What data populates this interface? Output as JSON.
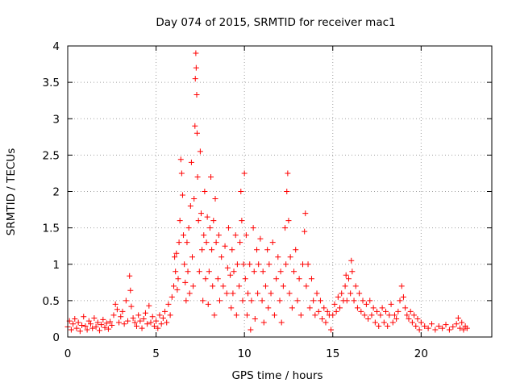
{
  "chart_data": {
    "type": "scatter",
    "title": "Day 074 of 2015, SRMTID for receiver mac1",
    "xlabel": "GPS time / hours",
    "ylabel": "SRMTID / TECUs",
    "xlim": [
      0,
      24
    ],
    "ylim": [
      0,
      4
    ],
    "xticks": [
      0,
      5,
      10,
      15,
      20
    ],
    "xtick_labels": [
      "0",
      "5",
      "10",
      "15",
      "20"
    ],
    "yticks": [
      0,
      0.5,
      1,
      1.5,
      2,
      2.5,
      3,
      3.5,
      4
    ],
    "ytick_labels": [
      "0",
      "0.5",
      "1",
      "1.5",
      "2",
      "2.5",
      "3",
      "3.5",
      "4"
    ],
    "grid": true,
    "marker": "+",
    "color": "#ff0000",
    "series": [
      {
        "name": "mac1",
        "points": [
          [
            0.0,
            0.14
          ],
          [
            0.1,
            0.22
          ],
          [
            0.2,
            0.1
          ],
          [
            0.3,
            0.18
          ],
          [
            0.4,
            0.25
          ],
          [
            0.5,
            0.12
          ],
          [
            0.6,
            0.2
          ],
          [
            0.7,
            0.08
          ],
          [
            0.8,
            0.16
          ],
          [
            0.9,
            0.28
          ],
          [
            1.0,
            0.15
          ],
          [
            1.1,
            0.1
          ],
          [
            1.2,
            0.22
          ],
          [
            1.3,
            0.18
          ],
          [
            1.4,
            0.12
          ],
          [
            1.5,
            0.26
          ],
          [
            1.6,
            0.14
          ],
          [
            1.7,
            0.2
          ],
          [
            1.8,
            0.09
          ],
          [
            1.9,
            0.17
          ],
          [
            2.0,
            0.24
          ],
          [
            2.1,
            0.13
          ],
          [
            2.2,
            0.19
          ],
          [
            2.3,
            0.11
          ],
          [
            2.4,
            0.21
          ],
          [
            2.5,
            0.16
          ],
          [
            2.6,
            0.3
          ],
          [
            2.7,
            0.45
          ],
          [
            2.8,
            0.38
          ],
          [
            2.9,
            0.2
          ],
          [
            3.0,
            0.28
          ],
          [
            3.1,
            0.35
          ],
          [
            3.2,
            0.18
          ],
          [
            3.3,
            0.5
          ],
          [
            3.4,
            0.22
          ],
          [
            3.5,
            0.84
          ],
          [
            3.55,
            0.64
          ],
          [
            3.6,
            0.42
          ],
          [
            3.7,
            0.26
          ],
          [
            3.8,
            0.2
          ],
          [
            3.9,
            0.15
          ],
          [
            4.0,
            0.3
          ],
          [
            4.1,
            0.22
          ],
          [
            4.2,
            0.12
          ],
          [
            4.3,
            0.25
          ],
          [
            4.4,
            0.33
          ],
          [
            4.5,
            0.18
          ],
          [
            4.6,
            0.43
          ],
          [
            4.7,
            0.2
          ],
          [
            4.8,
            0.28
          ],
          [
            4.9,
            0.15
          ],
          [
            5.0,
            0.22
          ],
          [
            5.1,
            0.12
          ],
          [
            5.2,
            0.3
          ],
          [
            5.3,
            0.18
          ],
          [
            5.4,
            0.26
          ],
          [
            5.5,
            0.35
          ],
          [
            5.6,
            0.2
          ],
          [
            5.7,
            0.45
          ],
          [
            5.8,
            0.3
          ],
          [
            5.9,
            0.55
          ],
          [
            6.0,
            0.7
          ],
          [
            6.05,
            1.1
          ],
          [
            6.1,
            0.9
          ],
          [
            6.15,
            1.15
          ],
          [
            6.2,
            0.65
          ],
          [
            6.25,
            0.8
          ],
          [
            6.3,
            1.3
          ],
          [
            6.35,
            1.6
          ],
          [
            6.4,
            2.44
          ],
          [
            6.45,
            2.25
          ],
          [
            6.5,
            1.95
          ],
          [
            6.55,
            1.4
          ],
          [
            6.6,
            1.0
          ],
          [
            6.65,
            0.75
          ],
          [
            6.7,
            0.5
          ],
          [
            6.75,
            1.3
          ],
          [
            6.8,
            0.9
          ],
          [
            6.85,
            1.5
          ],
          [
            6.9,
            0.6
          ],
          [
            6.95,
            1.8
          ],
          [
            7.0,
            2.4
          ],
          [
            7.05,
            1.1
          ],
          [
            7.1,
            0.7
          ],
          [
            7.15,
            1.9
          ],
          [
            7.2,
            2.9
          ],
          [
            7.22,
            3.55
          ],
          [
            7.25,
            3.9
          ],
          [
            7.27,
            3.7
          ],
          [
            7.3,
            3.33
          ],
          [
            7.32,
            2.8
          ],
          [
            7.35,
            2.2
          ],
          [
            7.4,
            1.6
          ],
          [
            7.45,
            0.9
          ],
          [
            7.5,
            2.55
          ],
          [
            7.55,
            1.7
          ],
          [
            7.6,
            1.2
          ],
          [
            7.65,
            0.5
          ],
          [
            7.7,
            1.4
          ],
          [
            7.75,
            2.0
          ],
          [
            7.8,
            0.8
          ],
          [
            7.85,
            1.3
          ],
          [
            7.9,
            1.65
          ],
          [
            7.95,
            0.45
          ],
          [
            8.0,
            0.9
          ],
          [
            8.05,
            1.5
          ],
          [
            8.1,
            2.2
          ],
          [
            8.15,
            1.2
          ],
          [
            8.2,
            0.7
          ],
          [
            8.25,
            1.6
          ],
          [
            8.3,
            0.3
          ],
          [
            8.35,
            1.9
          ],
          [
            8.4,
            1.3
          ],
          [
            8.5,
            0.8
          ],
          [
            8.55,
            1.4
          ],
          [
            8.6,
            0.5
          ],
          [
            8.7,
            1.1
          ],
          [
            8.8,
            0.7
          ],
          [
            8.9,
            1.25
          ],
          [
            9.0,
            0.6
          ],
          [
            9.05,
            0.95
          ],
          [
            9.1,
            1.5
          ],
          [
            9.2,
            0.85
          ],
          [
            9.25,
            0.4
          ],
          [
            9.3,
            1.2
          ],
          [
            9.35,
            0.6
          ],
          [
            9.4,
            0.9
          ],
          [
            9.5,
            1.4
          ],
          [
            9.55,
            0.3
          ],
          [
            9.6,
            1.0
          ],
          [
            9.7,
            0.7
          ],
          [
            9.75,
            1.3
          ],
          [
            9.8,
            2.0
          ],
          [
            9.85,
            1.6
          ],
          [
            9.9,
            0.5
          ],
          [
            9.95,
            1.0
          ],
          [
            10.0,
            2.25
          ],
          [
            10.05,
            0.8
          ],
          [
            10.1,
            1.4
          ],
          [
            10.15,
            0.3
          ],
          [
            10.2,
            0.6
          ],
          [
            10.3,
            1.0
          ],
          [
            10.35,
            0.1
          ],
          [
            10.4,
            0.5
          ],
          [
            10.5,
            1.5
          ],
          [
            10.55,
            0.9
          ],
          [
            10.6,
            0.25
          ],
          [
            10.7,
            1.2
          ],
          [
            10.75,
            0.6
          ],
          [
            10.8,
            1.0
          ],
          [
            10.9,
            1.35
          ],
          [
            11.0,
            0.5
          ],
          [
            11.05,
            0.9
          ],
          [
            11.1,
            0.2
          ],
          [
            11.2,
            0.7
          ],
          [
            11.3,
            1.2
          ],
          [
            11.35,
            0.4
          ],
          [
            11.4,
            1.0
          ],
          [
            11.5,
            0.6
          ],
          [
            11.6,
            1.3
          ],
          [
            11.7,
            0.3
          ],
          [
            11.8,
            0.8
          ],
          [
            11.9,
            1.1
          ],
          [
            12.0,
            0.5
          ],
          [
            12.05,
            0.9
          ],
          [
            12.1,
            0.2
          ],
          [
            12.2,
            0.7
          ],
          [
            12.3,
            1.5
          ],
          [
            12.35,
            1.0
          ],
          [
            12.4,
            2.0
          ],
          [
            12.45,
            2.25
          ],
          [
            12.5,
            1.6
          ],
          [
            12.55,
            0.6
          ],
          [
            12.6,
            1.1
          ],
          [
            12.7,
            0.4
          ],
          [
            12.8,
            0.9
          ],
          [
            12.9,
            1.2
          ],
          [
            13.0,
            0.5
          ],
          [
            13.1,
            0.8
          ],
          [
            13.2,
            0.3
          ],
          [
            13.3,
            1.0
          ],
          [
            13.4,
            1.45
          ],
          [
            13.45,
            1.7
          ],
          [
            13.5,
            0.7
          ],
          [
            13.6,
            1.0
          ],
          [
            13.7,
            0.4
          ],
          [
            13.8,
            0.8
          ],
          [
            13.9,
            0.5
          ],
          [
            14.0,
            0.3
          ],
          [
            14.1,
            0.6
          ],
          [
            14.2,
            0.35
          ],
          [
            14.3,
            0.5
          ],
          [
            14.4,
            0.25
          ],
          [
            14.5,
            0.4
          ],
          [
            14.6,
            0.2
          ],
          [
            14.7,
            0.35
          ],
          [
            14.8,
            0.3
          ],
          [
            14.9,
            0.1
          ],
          [
            15.0,
            0.3
          ],
          [
            15.1,
            0.45
          ],
          [
            15.2,
            0.35
          ],
          [
            15.3,
            0.55
          ],
          [
            15.4,
            0.4
          ],
          [
            15.5,
            0.6
          ],
          [
            15.6,
            0.5
          ],
          [
            15.7,
            0.7
          ],
          [
            15.75,
            0.85
          ],
          [
            15.8,
            0.5
          ],
          [
            15.9,
            0.8
          ],
          [
            16.0,
            0.6
          ],
          [
            16.05,
            1.05
          ],
          [
            16.1,
            0.9
          ],
          [
            16.2,
            0.5
          ],
          [
            16.3,
            0.7
          ],
          [
            16.4,
            0.4
          ],
          [
            16.5,
            0.6
          ],
          [
            16.6,
            0.35
          ],
          [
            16.7,
            0.5
          ],
          [
            16.8,
            0.3
          ],
          [
            16.9,
            0.45
          ],
          [
            17.0,
            0.25
          ],
          [
            17.1,
            0.5
          ],
          [
            17.2,
            0.3
          ],
          [
            17.3,
            0.4
          ],
          [
            17.4,
            0.2
          ],
          [
            17.5,
            0.35
          ],
          [
            17.6,
            0.15
          ],
          [
            17.7,
            0.3
          ],
          [
            17.8,
            0.4
          ],
          [
            17.9,
            0.2
          ],
          [
            18.0,
            0.35
          ],
          [
            18.1,
            0.15
          ],
          [
            18.2,
            0.3
          ],
          [
            18.3,
            0.45
          ],
          [
            18.4,
            0.2
          ],
          [
            18.5,
            0.3
          ],
          [
            18.6,
            0.25
          ],
          [
            18.7,
            0.35
          ],
          [
            18.8,
            0.5
          ],
          [
            18.9,
            0.7
          ],
          [
            19.0,
            0.55
          ],
          [
            19.1,
            0.4
          ],
          [
            19.2,
            0.3
          ],
          [
            19.3,
            0.25
          ],
          [
            19.4,
            0.35
          ],
          [
            19.5,
            0.2
          ],
          [
            19.6,
            0.3
          ],
          [
            19.7,
            0.15
          ],
          [
            19.8,
            0.25
          ],
          [
            19.9,
            0.1
          ],
          [
            20.0,
            0.2
          ],
          [
            20.2,
            0.15
          ],
          [
            20.4,
            0.12
          ],
          [
            20.6,
            0.18
          ],
          [
            20.8,
            0.1
          ],
          [
            21.0,
            0.15
          ],
          [
            21.2,
            0.12
          ],
          [
            21.4,
            0.17
          ],
          [
            21.6,
            0.1
          ],
          [
            21.8,
            0.14
          ],
          [
            22.0,
            0.18
          ],
          [
            22.1,
            0.26
          ],
          [
            22.2,
            0.12
          ],
          [
            22.3,
            0.2
          ],
          [
            22.4,
            0.1
          ],
          [
            22.5,
            0.15
          ],
          [
            22.6,
            0.12
          ]
        ]
      }
    ]
  }
}
